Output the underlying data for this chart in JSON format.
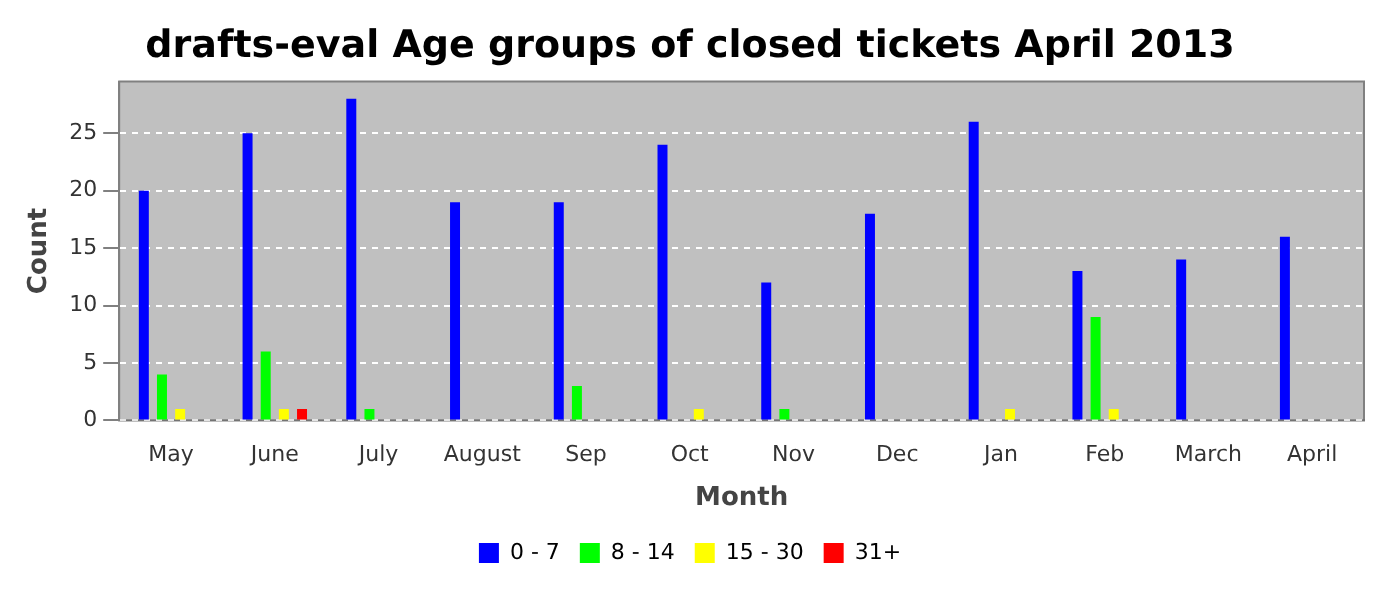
{
  "chart_data": {
    "type": "bar",
    "title": "drafts-eval Age groups of closed tickets April 2013",
    "xlabel": "Month",
    "ylabel": "Count",
    "categories": [
      "May",
      "June",
      "July",
      "August",
      "Sep",
      "Oct",
      "Nov",
      "Dec",
      "Jan",
      "Feb",
      "March",
      "April"
    ],
    "series": [
      {
        "name": "0 - 7",
        "color": "#0000ff",
        "values": [
          20,
          25,
          28,
          19,
          19,
          24,
          12,
          18,
          26,
          13,
          14,
          16
        ]
      },
      {
        "name": "8 - 14",
        "color": "#00ff00",
        "values": [
          4,
          6,
          1,
          0,
          3,
          0,
          1,
          0,
          0,
          9,
          0,
          0
        ]
      },
      {
        "name": "15 - 30",
        "color": "#ffff00",
        "values": [
          1,
          1,
          0,
          0,
          0,
          1,
          0,
          0,
          1,
          1,
          0,
          0
        ]
      },
      {
        "name": "31+",
        "color": "#ff0000",
        "values": [
          0,
          1,
          0,
          0,
          0,
          0,
          0,
          0,
          0,
          0,
          0,
          0
        ]
      }
    ],
    "ylim": [
      0,
      29.5
    ],
    "yticks": [
      0,
      5,
      10,
      15,
      20,
      25
    ],
    "grid": "y",
    "legend": "bottom"
  }
}
